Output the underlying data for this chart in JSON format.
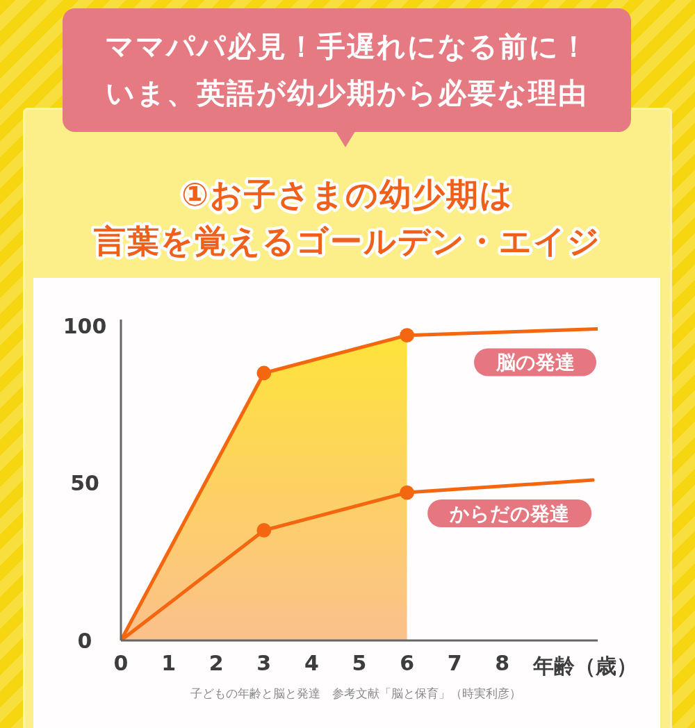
{
  "chart_data": {
    "type": "line",
    "title": "ママパパ必見！手遅れになる前に！いま、英語が幼少期から必要な理由",
    "subtitle": "①お子さまの幼少期は言葉を覚えるゴールデン・エイジ",
    "xlabel": "年齢（歳）",
    "annotations": [
      "子どもの年齢と脳と発達　参考文献「脳と保育」（時実利彦）"
    ],
    "xlim": [
      0,
      10
    ],
    "xticks": [
      0,
      1,
      2,
      3,
      4,
      5,
      6,
      7,
      8
    ],
    "ylim": [
      0,
      102
    ],
    "yticks": [
      0,
      50,
      100
    ],
    "line_style": "solid",
    "series": [
      {
        "name": "脳の発達",
        "color": "#f4660f",
        "x": [
          0,
          3,
          6,
          10
        ],
        "values": [
          0,
          85,
          97,
          99
        ],
        "lower": [
          0,
          0,
          0,
          null
        ],
        "upper": [
          0,
          85,
          97,
          null
        ]
      },
      {
        "type": "scatter",
        "color": "#f4660f",
        "x": [
          3,
          6
        ],
        "values": [
          85,
          97
        ],
        "marker": "circle"
      },
      {
        "name": "からだの発達",
        "color": "#f4660f",
        "x": [
          0,
          3,
          6,
          9.9
        ],
        "values": [
          0,
          35,
          47,
          51
        ]
      },
      {
        "type": "scatter",
        "color": "#f4660f",
        "x": [
          3,
          6
        ],
        "values": [
          35,
          47
        ],
        "marker": "circle"
      }
    ]
  }
}
